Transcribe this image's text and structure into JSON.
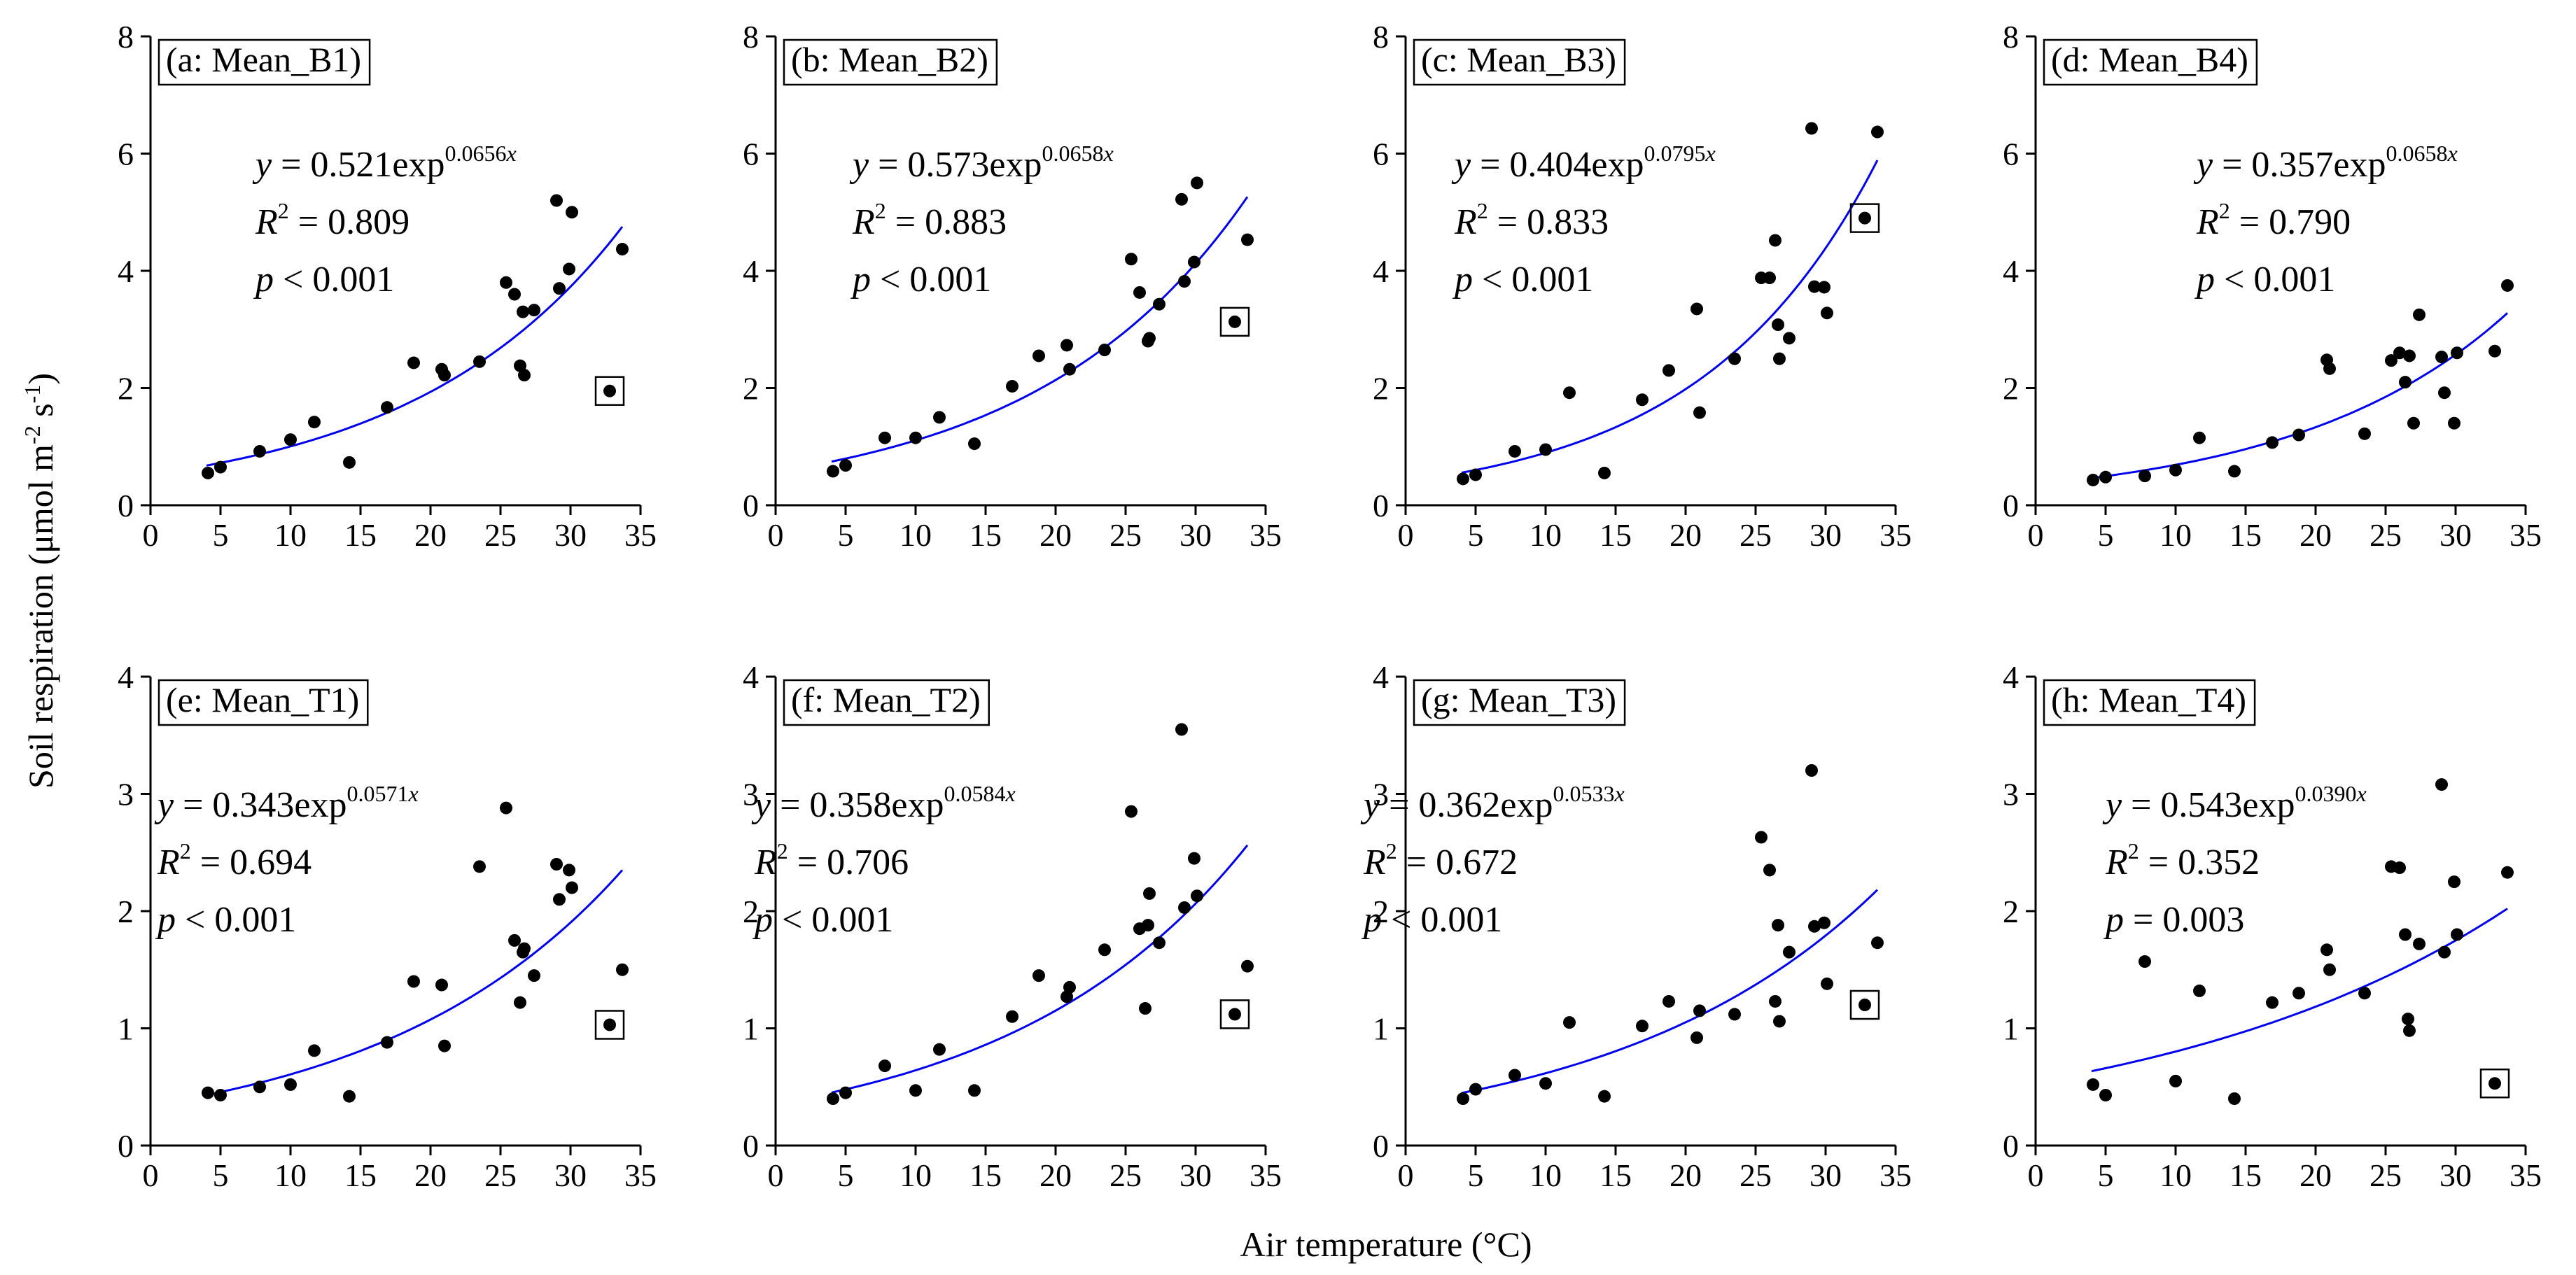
{
  "figure": {
    "ylabel": "Soil respiration (μmol m-2 s-1)",
    "xlabel": "Air temperature (°C)"
  },
  "chart_data": [
    {
      "type": "scatter",
      "title": "(a: Mean_B1)",
      "eq": {
        "a": "0.521",
        "b": "0.0656",
        "r2": "0.809",
        "p": "< 0.001"
      },
      "xlim": [
        0,
        35
      ],
      "ylim": [
        0,
        8
      ],
      "xticks": [
        0,
        5,
        10,
        15,
        20,
        25,
        30,
        35
      ],
      "yticks": [
        0,
        2,
        4,
        6,
        8
      ],
      "points": [
        [
          4.1,
          0.55
        ],
        [
          5.0,
          0.65
        ],
        [
          7.8,
          0.92
        ],
        [
          10.0,
          1.12
        ],
        [
          11.7,
          1.42
        ],
        [
          14.2,
          0.73
        ],
        [
          16.9,
          1.67
        ],
        [
          18.8,
          2.43
        ],
        [
          20.8,
          2.32
        ],
        [
          21.0,
          2.22
        ],
        [
          23.5,
          2.45
        ],
        [
          25.4,
          3.8
        ],
        [
          26.0,
          3.6
        ],
        [
          26.4,
          2.38
        ],
        [
          26.6,
          3.3
        ],
        [
          26.7,
          2.22
        ],
        [
          27.4,
          3.33
        ],
        [
          29.0,
          5.2
        ],
        [
          29.2,
          3.7
        ],
        [
          29.9,
          4.03
        ],
        [
          30.1,
          5.0
        ],
        [
          33.7,
          4.37
        ]
      ],
      "outlier": [
        32.8,
        1.95
      ],
      "curve": {
        "a": 0.521,
        "b": 0.0656,
        "x0": 4,
        "x1": 33.7
      }
    },
    {
      "type": "scatter",
      "title": "(b: Mean_B2)",
      "eq": {
        "a": "0.573",
        "b": "0.0658",
        "r2": "0.883",
        "p": "< 0.001"
      },
      "xlim": [
        0,
        35
      ],
      "ylim": [
        0,
        8
      ],
      "xticks": [
        0,
        5,
        10,
        15,
        20,
        25,
        30,
        35
      ],
      "yticks": [
        0,
        2,
        4,
        6,
        8
      ],
      "points": [
        [
          4.1,
          0.58
        ],
        [
          5.0,
          0.68
        ],
        [
          7.8,
          1.15
        ],
        [
          10.0,
          1.15
        ],
        [
          11.7,
          1.5
        ],
        [
          14.2,
          1.05
        ],
        [
          16.9,
          2.03
        ],
        [
          18.8,
          2.55
        ],
        [
          20.8,
          2.73
        ],
        [
          21.0,
          2.32
        ],
        [
          23.5,
          2.65
        ],
        [
          25.4,
          4.2
        ],
        [
          26.0,
          3.63
        ],
        [
          26.6,
          2.8
        ],
        [
          26.7,
          2.85
        ],
        [
          27.4,
          3.43
        ],
        [
          29.0,
          5.22
        ],
        [
          29.2,
          3.82
        ],
        [
          29.9,
          4.15
        ],
        [
          30.1,
          5.5
        ],
        [
          33.7,
          4.53
        ]
      ],
      "outlier": [
        32.8,
        3.13
      ],
      "curve": {
        "a": 0.573,
        "b": 0.0658,
        "x0": 4,
        "x1": 33.7
      }
    },
    {
      "type": "scatter",
      "title": "(c: Mean_B3)",
      "eq": {
        "a": "0.404",
        "b": "0.0795",
        "r2": "0.833",
        "p": "< 0.001"
      },
      "xlim": [
        0,
        35
      ],
      "ylim": [
        0,
        8
      ],
      "xticks": [
        0,
        5,
        10,
        15,
        20,
        25,
        30,
        35
      ],
      "yticks": [
        0,
        2,
        4,
        6,
        8
      ],
      "points": [
        [
          4.1,
          0.45
        ],
        [
          5.0,
          0.52
        ],
        [
          7.8,
          0.92
        ],
        [
          10.0,
          0.95
        ],
        [
          11.7,
          1.92
        ],
        [
          14.2,
          0.55
        ],
        [
          16.9,
          1.8
        ],
        [
          18.8,
          2.3
        ],
        [
          20.8,
          3.35
        ],
        [
          21.0,
          1.58
        ],
        [
          23.5,
          2.5
        ],
        [
          25.4,
          3.88
        ],
        [
          26.0,
          3.88
        ],
        [
          26.4,
          4.52
        ],
        [
          26.6,
          3.08
        ],
        [
          26.7,
          2.5
        ],
        [
          27.4,
          2.85
        ],
        [
          29.0,
          6.43
        ],
        [
          29.2,
          3.73
        ],
        [
          29.9,
          3.72
        ],
        [
          30.1,
          3.28
        ],
        [
          33.7,
          6.37
        ]
      ],
      "outlier": [
        32.8,
        4.9
      ],
      "curve": {
        "a": 0.404,
        "b": 0.0795,
        "x0": 4,
        "x1": 33.7
      }
    },
    {
      "type": "scatter",
      "title": "(d: Mean_B4)",
      "eq": {
        "a": "0.357",
        "b": "0.0658",
        "r2": "0.790",
        "p": "< 0.001"
      },
      "xlim": [
        0,
        35
      ],
      "ylim": [
        0,
        8
      ],
      "xticks": [
        0,
        5,
        10,
        15,
        20,
        25,
        30,
        35
      ],
      "yticks": [
        0,
        2,
        4,
        6,
        8
      ],
      "points": [
        [
          4.1,
          0.43
        ],
        [
          5.0,
          0.48
        ],
        [
          7.8,
          0.5
        ],
        [
          10.0,
          0.6
        ],
        [
          11.7,
          1.15
        ],
        [
          14.2,
          0.58
        ],
        [
          16.9,
          1.07
        ],
        [
          18.8,
          1.2
        ],
        [
          20.8,
          2.48
        ],
        [
          21.0,
          2.33
        ],
        [
          23.5,
          1.22
        ],
        [
          25.4,
          2.47
        ],
        [
          26.0,
          2.6
        ],
        [
          26.4,
          2.1
        ],
        [
          26.7,
          2.55
        ],
        [
          27.0,
          1.4
        ],
        [
          27.4,
          3.25
        ],
        [
          29.0,
          2.53
        ],
        [
          29.2,
          1.92
        ],
        [
          29.9,
          1.4
        ],
        [
          30.1,
          2.6
        ],
        [
          32.8,
          2.63
        ],
        [
          33.7,
          3.75
        ]
      ],
      "outlier": null,
      "curve": {
        "a": 0.357,
        "b": 0.0658,
        "x0": 4,
        "x1": 33.7
      }
    },
    {
      "type": "scatter",
      "title": "(e: Mean_T1)",
      "eq": {
        "a": "0.343",
        "b": "0.0571",
        "r2": "0.694",
        "p": "< 0.001"
      },
      "xlim": [
        0,
        35
      ],
      "ylim": [
        0,
        4
      ],
      "xticks": [
        0,
        5,
        10,
        15,
        20,
        25,
        30,
        35
      ],
      "yticks": [
        0,
        1,
        2,
        3,
        4
      ],
      "points": [
        [
          4.1,
          0.45
        ],
        [
          5.0,
          0.43
        ],
        [
          7.8,
          0.5
        ],
        [
          10.0,
          0.52
        ],
        [
          11.7,
          0.81
        ],
        [
          14.2,
          0.42
        ],
        [
          16.9,
          0.88
        ],
        [
          18.8,
          1.4
        ],
        [
          20.8,
          1.37
        ],
        [
          21.0,
          0.85
        ],
        [
          23.5,
          2.38
        ],
        [
          25.4,
          2.88
        ],
        [
          26.0,
          1.75
        ],
        [
          26.4,
          1.22
        ],
        [
          26.6,
          1.65
        ],
        [
          26.7,
          1.68
        ],
        [
          27.4,
          1.45
        ],
        [
          29.0,
          2.4
        ],
        [
          29.2,
          2.1
        ],
        [
          29.9,
          2.35
        ],
        [
          30.1,
          2.2
        ],
        [
          33.7,
          1.5
        ]
      ],
      "outlier": [
        32.8,
        1.03
      ],
      "curve": {
        "a": 0.343,
        "b": 0.0571,
        "x0": 4,
        "x1": 33.7
      }
    },
    {
      "type": "scatter",
      "title": "(f: Mean_T2)",
      "eq": {
        "a": "0.358",
        "b": "0.0584",
        "r2": "0.706",
        "p": "< 0.001"
      },
      "xlim": [
        0,
        35
      ],
      "ylim": [
        0,
        4
      ],
      "xticks": [
        0,
        5,
        10,
        15,
        20,
        25,
        30,
        35
      ],
      "yticks": [
        0,
        1,
        2,
        3,
        4
      ],
      "points": [
        [
          4.1,
          0.4
        ],
        [
          5.0,
          0.45
        ],
        [
          7.8,
          0.68
        ],
        [
          10.0,
          0.47
        ],
        [
          11.7,
          0.82
        ],
        [
          14.2,
          0.47
        ],
        [
          16.9,
          1.1
        ],
        [
          18.8,
          1.45
        ],
        [
          20.8,
          1.27
        ],
        [
          21.0,
          1.35
        ],
        [
          23.5,
          1.67
        ],
        [
          25.4,
          2.85
        ],
        [
          26.0,
          1.85
        ],
        [
          26.4,
          1.17
        ],
        [
          26.6,
          1.88
        ],
        [
          26.7,
          2.15
        ],
        [
          27.4,
          1.73
        ],
        [
          29.0,
          3.55
        ],
        [
          29.2,
          2.03
        ],
        [
          29.9,
          2.45
        ],
        [
          30.1,
          2.13
        ],
        [
          33.7,
          1.53
        ]
      ],
      "outlier": [
        32.8,
        1.12
      ],
      "curve": {
        "a": 0.358,
        "b": 0.0584,
        "x0": 4,
        "x1": 33.7
      }
    },
    {
      "type": "scatter",
      "title": "(g: Mean_T3)",
      "eq": {
        "a": "0.362",
        "b": "0.0533",
        "r2": "0.672",
        "p": "< 0.001"
      },
      "xlim": [
        0,
        35
      ],
      "ylim": [
        0,
        4
      ],
      "xticks": [
        0,
        5,
        10,
        15,
        20,
        25,
        30,
        35
      ],
      "yticks": [
        0,
        1,
        2,
        3,
        4
      ],
      "points": [
        [
          4.1,
          0.4
        ],
        [
          5.0,
          0.48
        ],
        [
          7.8,
          0.6
        ],
        [
          10.0,
          0.53
        ],
        [
          11.7,
          1.05
        ],
        [
          14.2,
          0.42
        ],
        [
          16.9,
          1.02
        ],
        [
          18.8,
          1.23
        ],
        [
          20.8,
          0.92
        ],
        [
          21.0,
          1.15
        ],
        [
          23.5,
          1.12
        ],
        [
          25.4,
          2.63
        ],
        [
          26.0,
          2.35
        ],
        [
          26.4,
          1.23
        ],
        [
          26.6,
          1.88
        ],
        [
          26.7,
          1.06
        ],
        [
          27.4,
          1.65
        ],
        [
          29.0,
          3.2
        ],
        [
          29.2,
          1.87
        ],
        [
          29.9,
          1.9
        ],
        [
          30.1,
          1.38
        ],
        [
          33.7,
          1.73
        ]
      ],
      "outlier": [
        32.8,
        1.2
      ],
      "curve": {
        "a": 0.362,
        "b": 0.0533,
        "x0": 4,
        "x1": 33.7
      }
    },
    {
      "type": "scatter",
      "title": "(h: Mean_T4)",
      "eq": {
        "a": "0.543",
        "b": "0.0390",
        "r2": "0.352",
        "p": "= 0.003"
      },
      "xlim": [
        0,
        35
      ],
      "ylim": [
        0,
        4
      ],
      "xticks": [
        0,
        5,
        10,
        15,
        20,
        25,
        30,
        35
      ],
      "yticks": [
        0,
        1,
        2,
        3,
        4
      ],
      "points": [
        [
          4.1,
          0.52
        ],
        [
          5.0,
          0.43
        ],
        [
          7.8,
          1.57
        ],
        [
          10.0,
          0.55
        ],
        [
          11.7,
          1.32
        ],
        [
          14.2,
          0.4
        ],
        [
          16.9,
          1.22
        ],
        [
          18.8,
          1.3
        ],
        [
          20.8,
          1.67
        ],
        [
          21.0,
          1.5
        ],
        [
          23.5,
          1.3
        ],
        [
          25.4,
          2.38
        ],
        [
          26.0,
          2.37
        ],
        [
          26.4,
          1.8
        ],
        [
          26.6,
          1.08
        ],
        [
          26.7,
          0.98
        ],
        [
          27.4,
          1.72
        ],
        [
          29.0,
          3.08
        ],
        [
          29.2,
          1.65
        ],
        [
          29.9,
          2.25
        ],
        [
          30.1,
          1.8
        ],
        [
          33.7,
          2.33
        ]
      ],
      "outlier": [
        32.8,
        0.53
      ],
      "curve": {
        "a": 0.543,
        "b": 0.039,
        "x0": 4,
        "x1": 33.7
      }
    }
  ]
}
